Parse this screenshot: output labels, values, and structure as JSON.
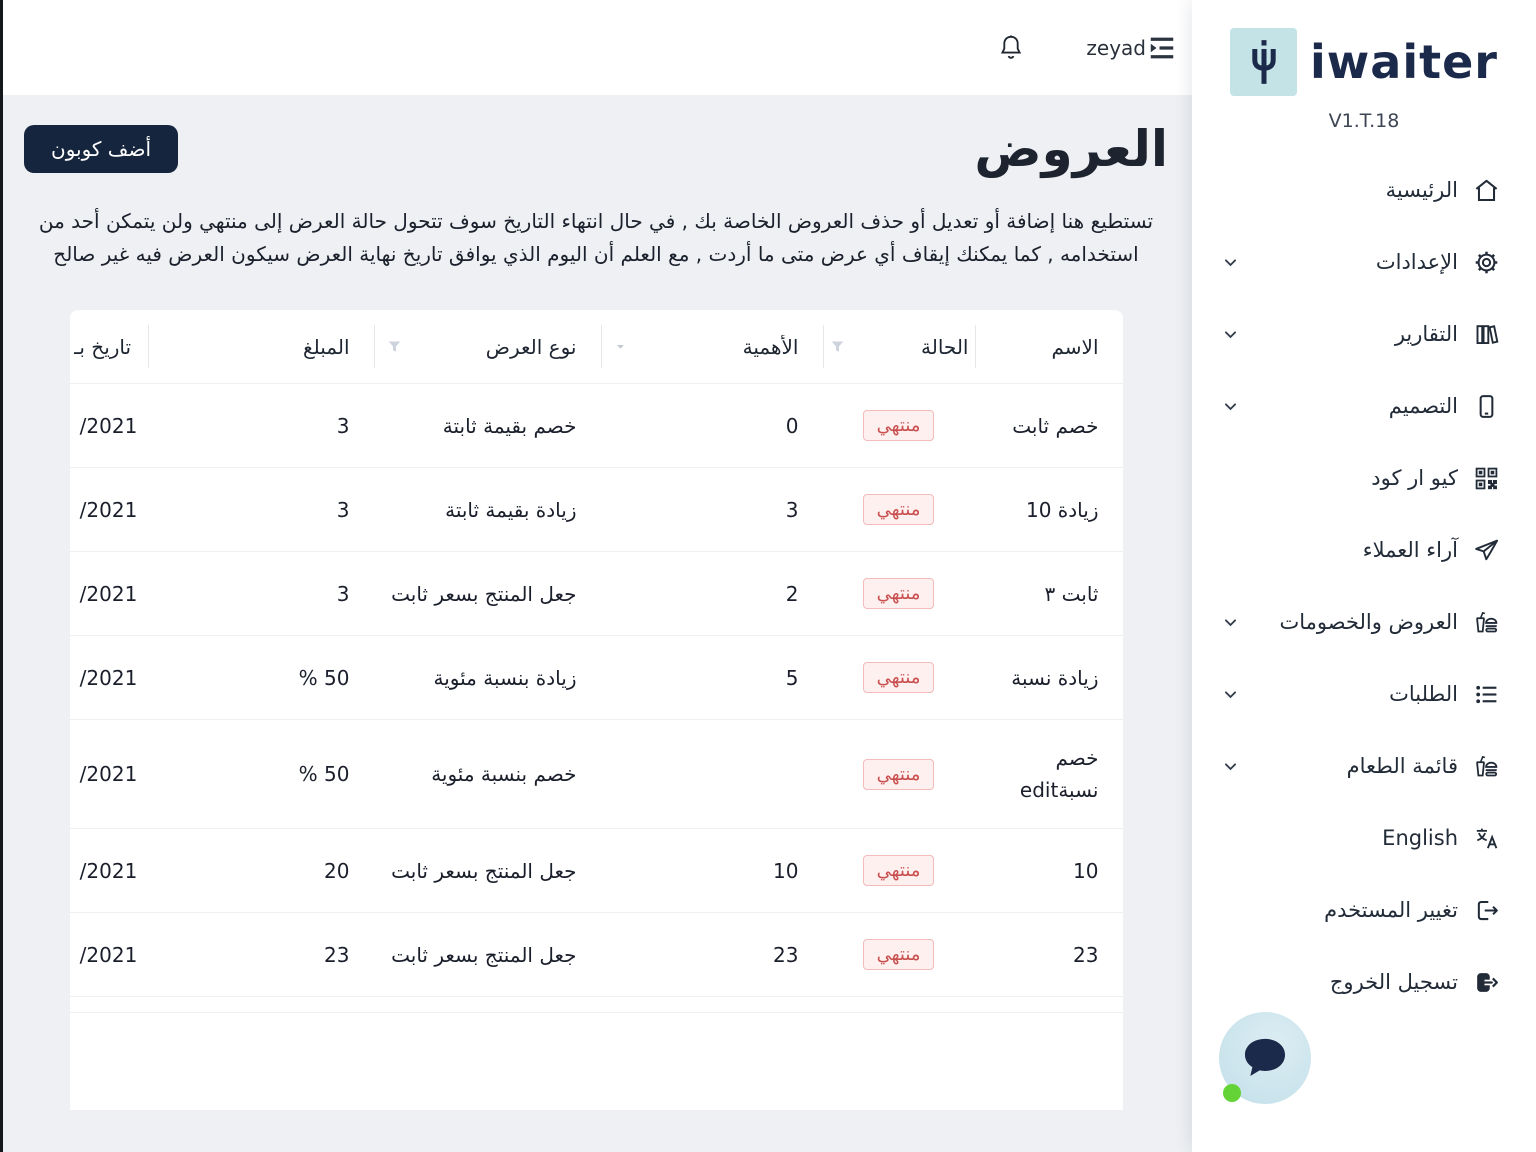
{
  "topbar": {
    "username": "zeyad"
  },
  "sidebar": {
    "brand": "iwaiter",
    "version": "V1.T.18",
    "items": [
      {
        "label": "الرئيسية",
        "icon": "home",
        "expandable": false
      },
      {
        "label": "الإعدادات",
        "icon": "settings",
        "expandable": true
      },
      {
        "label": "التقارير",
        "icon": "reports",
        "expandable": true
      },
      {
        "label": "التصميم",
        "icon": "design",
        "expandable": true
      },
      {
        "label": "كيو ار كود",
        "icon": "qr-code",
        "expandable": false
      },
      {
        "label": "آراء العملاء",
        "icon": "feedback",
        "expandable": false
      },
      {
        "label": "العروض والخصومات",
        "icon": "offers",
        "expandable": true
      },
      {
        "label": "الطلبات",
        "icon": "orders",
        "expandable": true
      },
      {
        "label": "قائمة الطعام",
        "icon": "food-menu",
        "expandable": true
      },
      {
        "label": "English",
        "icon": "language",
        "expandable": false
      },
      {
        "label": "تغيير المستخدم",
        "icon": "switch-user",
        "expandable": false
      },
      {
        "label": "تسجيل الخروج",
        "icon": "logout",
        "expandable": false
      }
    ]
  },
  "main": {
    "title": "العروض",
    "add_button": "أضف كوبون",
    "description": "تستطيع هنا إضافة أو تعديل أو حذف العروض الخاصة بك , في حال انتهاء التاريخ سوف تتحول حالة العرض إلى منتهي ولن يتمكن أحد من استخدامه , كما يمكنك إيقاف أي عرض متى ما أردت , مع العلم أن اليوم الذي يوافق تاريخ نهاية العرض سيكون العرض فيه غير صالح"
  },
  "table": {
    "columns": [
      {
        "key": "name",
        "label": "الاسم",
        "filter": ""
      },
      {
        "key": "status",
        "label": "الحالة",
        "filter": "funnel"
      },
      {
        "key": "importance",
        "label": "الأهمية",
        "filter": "caret"
      },
      {
        "key": "type",
        "label": "نوع العرض",
        "filter": "funnel"
      },
      {
        "key": "amount",
        "label": "المبلغ",
        "filter": ""
      },
      {
        "key": "date",
        "label": "تاريخ بـ",
        "filter": ""
      }
    ],
    "rows": [
      {
        "name": "خصم ثابت",
        "status": "منتهي",
        "importance": "0",
        "type": "خصم بقيمة ثابتة",
        "amount": "3",
        "date": "/2021"
      },
      {
        "name": "زيادة 10",
        "status": "منتهي",
        "importance": "3",
        "type": "زيادة بقيمة ثابتة",
        "amount": "3",
        "date": "/2021"
      },
      {
        "name": "ثابت ٣",
        "status": "منتهي",
        "importance": "2",
        "type": "جعل المنتج بسعر ثابت",
        "amount": "3",
        "date": "/2021"
      },
      {
        "name": "زيادة نسبة",
        "status": "منتهي",
        "importance": "5",
        "type": "زيادة بنسبة مئوية",
        "amount": "50 %",
        "date": "/2021"
      },
      {
        "name": "خصم نسبةedit",
        "status": "منتهي",
        "importance": "",
        "type": "خصم بنسبة مئوية",
        "amount": "50 %",
        "date": "/2021"
      },
      {
        "name": "10",
        "status": "منتهي",
        "importance": "10",
        "type": "جعل المنتج بسعر ثابت",
        "amount": "20",
        "date": "/2021"
      },
      {
        "name": "23",
        "status": "منتهي",
        "importance": "23",
        "type": "جعل المنتج بسعر ثابت",
        "amount": "23",
        "date": "/2021"
      }
    ]
  },
  "colors": {
    "accent_navy": "#16253e",
    "brand_teal": "#c3e3e6",
    "badge_bg": "#fdf0ef",
    "badge_border": "#f2bcbc",
    "badge_text": "#c94f4f",
    "page_bg": "#eef0f3",
    "online_green": "#63d335"
  }
}
